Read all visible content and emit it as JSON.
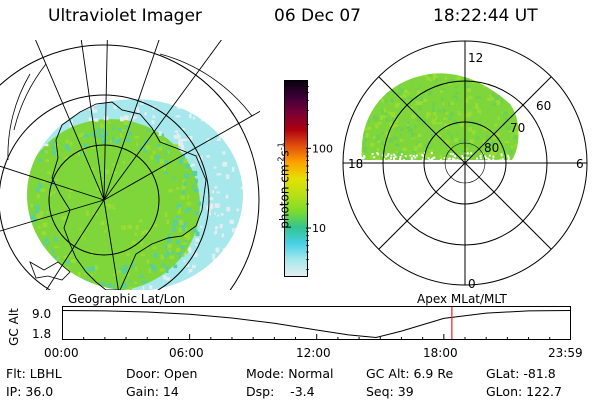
{
  "header": {
    "title": "Ultraviolet Imager",
    "date": "06 Dec 07",
    "time": "18:22:44 UT"
  },
  "colorbar": {
    "unit_label": "photon cm",
    "unit_sup1": "-2",
    "unit_mid": "s",
    "unit_sup2": "-1",
    "tick_labels": [
      "100",
      "10"
    ],
    "ticks": [
      100,
      10
    ],
    "range": [
      2.5,
      700
    ],
    "scale": "log",
    "colors": [
      "#e4eef0",
      "#a6e8ec",
      "#47d0e6",
      "#33c48f",
      "#7ddc2c",
      "#b8e016",
      "#e6e000",
      "#ffa000",
      "#e05010",
      "#b00010",
      "#7a0036",
      "#3c0036",
      "#0a0010"
    ]
  },
  "left_map": {
    "caption": "Geographic Lat/Lon",
    "projection": "geographic-polar",
    "emission_colors": [
      "#7ed63a",
      "#9adc32",
      "#56cfa4",
      "#a6e8ec",
      "#e4eef0"
    ]
  },
  "right_map": {
    "caption": "Apex MLat/MLT",
    "mlt_labels": [
      "12",
      "18",
      "6",
      "0"
    ],
    "mlat_labels": [
      "60",
      "70",
      "80"
    ],
    "emission_colors": [
      "#7ed63a",
      "#6ed050",
      "#9adc32"
    ]
  },
  "alt_plot": {
    "ylabel": "GC Alt",
    "ytick_labels": [
      "9.0",
      "1.8"
    ],
    "xtick_labels": [
      "00:00",
      "06:00",
      "12:00",
      "18:00",
      "23:59"
    ],
    "current_time_color": "#ee2020"
  },
  "chart_data": {
    "type": "line",
    "ylabel": "GC Alt",
    "xlabel": "",
    "x_hours": [
      0,
      2,
      4,
      6,
      8,
      10,
      12,
      13.5,
      14.8,
      16,
      18,
      20,
      22,
      23.98
    ],
    "y_re": [
      9.0,
      8.9,
      8.6,
      8.0,
      7.0,
      5.6,
      3.8,
      2.5,
      1.8,
      3.5,
      6.9,
      8.3,
      8.9,
      9.0
    ],
    "ylim": [
      1.8,
      9.0
    ],
    "xlim": [
      0,
      23.98
    ],
    "current_time_hours": 18.38
  },
  "info": {
    "filter": "Flt: LBHL",
    "ip": "IP: 36.0",
    "door": "Door: Open",
    "gain": "Gain: 14",
    "mode": "Mode: Normal",
    "dsp": "Dsp:    -3.4",
    "gc_alt": "GC Alt: 6.9 Re",
    "seq": "Seq: 39",
    "glat": "GLat: -81.8",
    "glon": "GLon: 122.7"
  }
}
